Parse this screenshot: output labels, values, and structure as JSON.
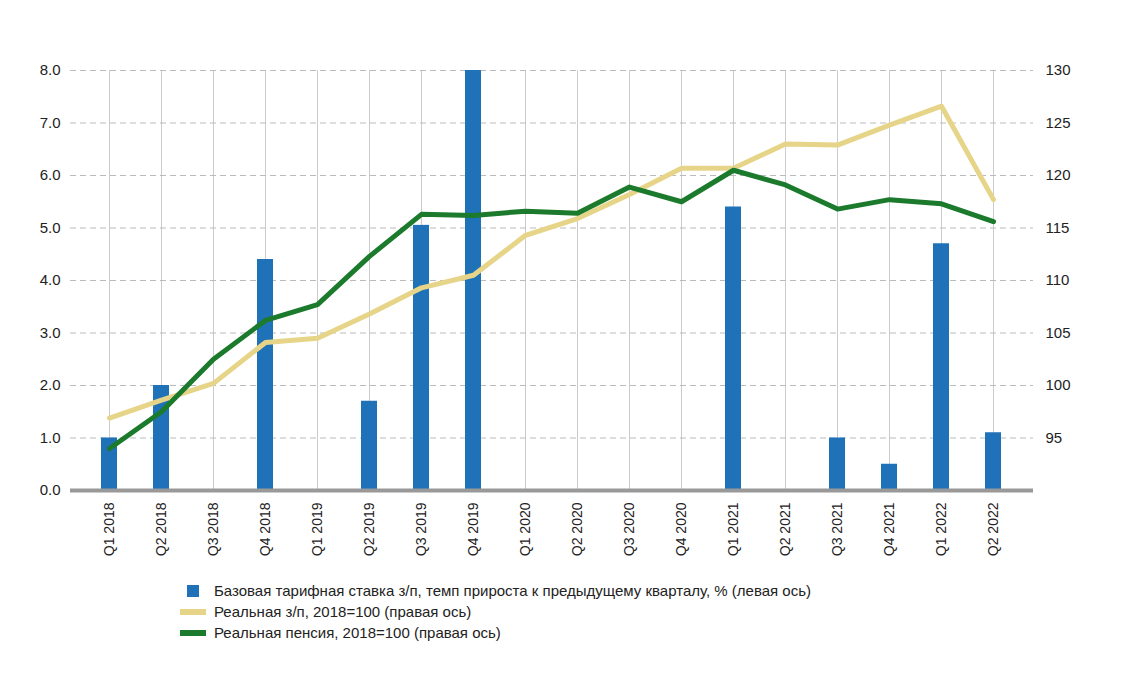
{
  "chart_data": {
    "type": "bar",
    "categories": [
      "Q1 2018",
      "Q2 2018",
      "Q3 2018",
      "Q4 2018",
      "Q1 2019",
      "Q2 2019",
      "Q3 2019",
      "Q4 2019",
      "Q1 2020",
      "Q2 2020",
      "Q3 2020",
      "Q4 2020",
      "Q1 2021",
      "Q2 2021",
      "Q3 2021",
      "Q4 2021",
      "Q1 2022",
      "Q2 2022"
    ],
    "series": [
      {
        "name": "Базовая тарифная ставка з/п, темп прироста к предыдущему кварталу, % (левая ось)",
        "type": "bar",
        "color": "#1f72b8",
        "values": [
          1.0,
          2.0,
          null,
          4.4,
          null,
          1.7,
          5.05,
          8.0,
          null,
          null,
          null,
          null,
          5.4,
          null,
          1.0,
          0.5,
          4.7,
          1.1
        ]
      },
      {
        "name": "Реальная з/п, 2018=100 (правая ось)",
        "type": "line",
        "axis": "y2",
        "color": "#e6d488",
        "values": [
          96.9,
          98.6,
          100.2,
          104.1,
          104.5,
          106.8,
          109.3,
          110.5,
          114.3,
          115.9,
          118.2,
          120.7,
          120.7,
          123.0,
          122.9,
          124.8,
          126.6,
          117.7
        ]
      },
      {
        "name": "Реальная пенсия, 2018=100 (правая ось)",
        "type": "line",
        "axis": "y2",
        "color": "#1b7a2c",
        "values": [
          94.0,
          97.5,
          102.5,
          106.2,
          107.7,
          112.3,
          116.3,
          116.2,
          116.6,
          116.4,
          118.9,
          117.5,
          120.5,
          119.1,
          116.8,
          117.7,
          117.3,
          115.6
        ]
      }
    ],
    "ylim": [
      0,
      8
    ],
    "yticks": [
      0,
      1,
      2,
      3,
      4,
      5,
      6,
      7,
      8
    ],
    "y2lim": [
      90,
      130
    ],
    "y2ticks": [
      95,
      100,
      105,
      110,
      115,
      120,
      125,
      130
    ],
    "grid": true,
    "legend": "bottom"
  }
}
